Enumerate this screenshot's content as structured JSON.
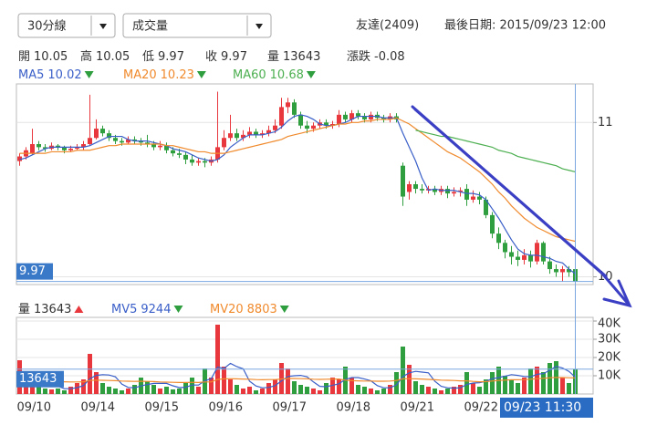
{
  "controls": {
    "period": "30分線",
    "indicator": "成交量"
  },
  "header": {
    "stock": "友達(2409)",
    "last_date": "最後日期: 2015/09/23 12:00"
  },
  "info_labels": [
    "開",
    "高",
    "低",
    "收",
    "量",
    "漲跌"
  ],
  "change": -0.08,
  "chart_data": [
    {
      "type": "candlestick",
      "up_color": "#e8383d",
      "down_color": "#2e9e3e",
      "open": [
        10.75,
        10.78,
        10.8,
        10.86,
        10.84,
        10.83,
        10.85,
        10.84,
        10.82,
        10.83,
        10.84,
        10.86,
        10.9,
        10.96,
        10.93,
        10.9,
        10.88,
        10.87,
        10.89,
        10.88,
        10.87,
        10.86,
        10.84,
        10.85,
        10.82,
        10.8,
        10.79,
        10.76,
        10.74,
        10.75,
        10.74,
        10.76,
        10.84,
        10.9,
        10.93,
        10.9,
        10.92,
        10.94,
        10.92,
        10.93,
        10.95,
        10.98,
        11.1,
        11.13,
        11.05,
        10.98,
        10.96,
        10.98,
        11.0,
        10.98,
        10.99,
        11.05,
        11.02,
        11.06,
        11.04,
        11.02,
        11.05,
        11.03,
        11.02,
        11.04,
        10.72,
        10.55,
        10.6,
        10.57,
        10.56,
        10.57,
        10.55,
        10.57,
        10.54,
        10.55,
        10.57,
        10.5,
        10.52,
        10.5,
        10.4,
        10.28,
        10.22,
        10.16,
        10.13,
        10.11,
        10.14,
        10.1,
        10.22,
        10.1,
        10.05,
        10.03,
        10.05,
        10.05
      ],
      "high": [
        10.8,
        10.84,
        10.96,
        10.88,
        10.86,
        10.87,
        10.86,
        10.85,
        10.85,
        10.86,
        10.88,
        11.18,
        11.02,
        10.98,
        10.95,
        10.92,
        10.9,
        10.91,
        10.91,
        10.9,
        10.92,
        10.88,
        10.88,
        10.87,
        10.84,
        10.83,
        10.81,
        10.79,
        10.77,
        10.77,
        10.78,
        11.2,
        10.95,
        11.05,
        10.96,
        10.95,
        10.97,
        10.96,
        10.95,
        10.98,
        11.02,
        11.16,
        11.16,
        11.15,
        11.07,
        11.01,
        11.0,
        11.02,
        11.02,
        11.01,
        11.08,
        11.07,
        11.08,
        11.08,
        11.06,
        11.07,
        11.07,
        11.05,
        11.06,
        11.06,
        10.74,
        10.62,
        10.62,
        10.6,
        10.59,
        10.59,
        10.59,
        10.59,
        10.58,
        10.58,
        10.6,
        10.56,
        10.55,
        10.52,
        10.42,
        10.32,
        10.24,
        10.2,
        10.17,
        10.18,
        10.17,
        10.24,
        10.23,
        10.13,
        10.08,
        10.07,
        10.07,
        10.05
      ],
      "low": [
        10.72,
        10.76,
        10.79,
        10.82,
        10.81,
        10.82,
        10.82,
        10.8,
        10.81,
        10.82,
        10.82,
        10.85,
        10.89,
        10.91,
        10.88,
        10.86,
        10.85,
        10.86,
        10.86,
        10.85,
        10.84,
        10.82,
        10.82,
        10.8,
        10.78,
        10.77,
        10.73,
        10.72,
        10.72,
        10.71,
        10.72,
        10.74,
        10.82,
        10.88,
        10.88,
        10.88,
        10.9,
        10.9,
        10.9,
        10.91,
        10.93,
        10.96,
        11.06,
        11.03,
        10.96,
        10.93,
        10.94,
        10.96,
        10.96,
        10.96,
        10.97,
        11.0,
        11.0,
        11.02,
        11.0,
        11.0,
        11.01,
        11.0,
        11.0,
        11.0,
        10.46,
        10.5,
        10.54,
        10.54,
        10.54,
        10.53,
        10.53,
        10.51,
        10.52,
        10.52,
        10.46,
        10.48,
        10.47,
        10.38,
        10.25,
        10.18,
        10.12,
        10.08,
        10.07,
        10.08,
        10.06,
        10.08,
        10.08,
        10.02,
        10.0,
        9.97,
        10.0,
        9.97
      ],
      "close": [
        10.78,
        10.82,
        10.86,
        10.84,
        10.83,
        10.85,
        10.84,
        10.82,
        10.83,
        10.84,
        10.86,
        10.9,
        10.96,
        10.93,
        10.9,
        10.88,
        10.87,
        10.89,
        10.88,
        10.87,
        10.86,
        10.84,
        10.85,
        10.82,
        10.8,
        10.79,
        10.76,
        10.74,
        10.75,
        10.74,
        10.76,
        10.84,
        10.9,
        10.93,
        10.9,
        10.92,
        10.94,
        10.92,
        10.93,
        10.95,
        10.98,
        11.1,
        11.13,
        11.05,
        10.98,
        10.96,
        10.98,
        11.0,
        10.98,
        10.99,
        11.05,
        11.02,
        11.06,
        11.04,
        11.02,
        11.05,
        11.03,
        11.02,
        11.04,
        11.02,
        10.52,
        10.6,
        10.57,
        10.56,
        10.57,
        10.55,
        10.57,
        10.54,
        10.55,
        10.56,
        10.5,
        10.52,
        10.5,
        10.4,
        10.28,
        10.22,
        10.16,
        10.13,
        10.11,
        10.14,
        10.1,
        10.22,
        10.1,
        10.05,
        10.03,
        10.05,
        10.03,
        9.97
      ],
      "series": [
        {
          "name": "MA5",
          "color": "#3a5fc8",
          "values": [
            10.76,
            10.77,
            10.79,
            10.81,
            10.83,
            10.84,
            10.84,
            10.84,
            10.84,
            10.84,
            10.84,
            10.85,
            10.87,
            10.89,
            10.91,
            10.91,
            10.91,
            10.89,
            10.88,
            10.88,
            10.88,
            10.87,
            10.86,
            10.85,
            10.83,
            10.82,
            10.81,
            10.79,
            10.77,
            10.76,
            10.75,
            10.76,
            10.79,
            10.84,
            10.87,
            10.9,
            10.92,
            10.92,
            10.92,
            10.93,
            10.94,
            10.97,
            11.01,
            11.04,
            11.05,
            11.04,
            11.02,
            10.99,
            10.98,
            10.98,
            10.99,
            11.0,
            11.02,
            11.04,
            11.04,
            11.04,
            11.04,
            11.03,
            11.03,
            11.03,
            10.93,
            10.84,
            10.75,
            10.64,
            10.56,
            10.57,
            10.56,
            10.56,
            10.56,
            10.55,
            10.54,
            10.54,
            10.53,
            10.5,
            10.44,
            10.38,
            10.31,
            10.24,
            10.18,
            10.15,
            10.14,
            10.14,
            10.13,
            10.12,
            10.1,
            10.09,
            10.05,
            10.02
          ]
        },
        {
          "name": "MA20",
          "color": "#f08a2c",
          "values": [
            10.8,
            10.8,
            10.8,
            10.8,
            10.8,
            10.81,
            10.81,
            10.81,
            10.81,
            10.82,
            10.82,
            10.82,
            10.83,
            10.84,
            10.85,
            10.85,
            10.86,
            10.86,
            10.86,
            10.86,
            10.86,
            10.86,
            10.86,
            10.85,
            10.85,
            10.84,
            10.83,
            10.82,
            10.81,
            10.81,
            10.8,
            10.8,
            10.8,
            10.81,
            10.82,
            10.83,
            10.84,
            10.85,
            10.86,
            10.87,
            10.88,
            10.89,
            10.91,
            10.92,
            10.93,
            10.94,
            10.95,
            10.96,
            10.97,
            10.98,
            10.99,
            10.99,
            11.0,
            11.0,
            11.01,
            11.01,
            11.02,
            11.02,
            11.02,
            11.03,
            11.01,
            10.99,
            10.96,
            10.93,
            10.9,
            10.87,
            10.84,
            10.81,
            10.79,
            10.77,
            10.74,
            10.71,
            10.68,
            10.64,
            10.6,
            10.55,
            10.51,
            10.46,
            10.42,
            10.38,
            10.35,
            10.32,
            10.3,
            10.28,
            10.26,
            10.25,
            10.24,
            10.23
          ]
        },
        {
          "name": "MA60",
          "color": "#4caf50",
          "values": [
            null,
            null,
            null,
            null,
            null,
            null,
            null,
            null,
            null,
            null,
            null,
            null,
            null,
            null,
            null,
            null,
            null,
            null,
            null,
            null,
            null,
            null,
            null,
            null,
            null,
            null,
            null,
            null,
            null,
            null,
            null,
            null,
            null,
            null,
            null,
            null,
            null,
            null,
            null,
            null,
            null,
            null,
            null,
            null,
            null,
            null,
            null,
            null,
            null,
            null,
            null,
            null,
            null,
            null,
            null,
            null,
            null,
            null,
            null,
            null,
            null,
            null,
            10.95,
            10.94,
            10.93,
            10.92,
            10.91,
            10.91,
            10.9,
            10.89,
            10.88,
            10.87,
            10.86,
            10.85,
            10.84,
            10.82,
            10.81,
            10.8,
            10.78,
            10.77,
            10.76,
            10.75,
            10.74,
            10.73,
            10.72,
            10.7,
            10.69,
            10.68
          ]
        }
      ],
      "ylim": [
        9.95,
        11.25
      ],
      "yticks": [
        10,
        11
      ],
      "grid": true
    },
    {
      "type": "bar",
      "volume_label": "量",
      "cursor_label": "09/23 11:30",
      "categories": [
        "09/10",
        null,
        null,
        null,
        null,
        null,
        null,
        null,
        null,
        null,
        "09/14",
        null,
        null,
        null,
        null,
        null,
        null,
        null,
        null,
        null,
        "09/15",
        null,
        null,
        null,
        null,
        null,
        null,
        null,
        null,
        null,
        "09/16",
        null,
        null,
        null,
        null,
        null,
        null,
        null,
        null,
        null,
        "09/17",
        null,
        null,
        null,
        null,
        null,
        null,
        null,
        null,
        null,
        "09/18",
        null,
        null,
        null,
        null,
        null,
        null,
        null,
        null,
        null,
        "09/21",
        null,
        null,
        null,
        null,
        null,
        null,
        null,
        null,
        null,
        "09/22",
        null,
        null,
        null,
        null,
        null,
        null,
        null,
        null,
        null,
        null,
        null,
        null,
        null,
        null,
        null,
        null,
        null
      ],
      "values": [
        18500,
        6000,
        9000,
        4000,
        3000,
        2500,
        3000,
        2000,
        4000,
        6000,
        8000,
        22000,
        12000,
        6000,
        4000,
        3000,
        2000,
        3000,
        5000,
        9000,
        7000,
        5000,
        3000,
        4000,
        2500,
        3000,
        6000,
        9000,
        4000,
        14000,
        9000,
        38000,
        15000,
        8000,
        5000,
        3000,
        4000,
        2000,
        3000,
        6000,
        8000,
        17000,
        14000,
        7000,
        5000,
        4000,
        3000,
        2000,
        6000,
        9000,
        8000,
        15000,
        9000,
        5000,
        4000,
        3000,
        2000,
        3000,
        5000,
        12000,
        26000,
        16000,
        7000,
        5000,
        4000,
        3000,
        2000,
        3000,
        4000,
        5000,
        12000,
        6000,
        4000,
        8000,
        12000,
        15000,
        10000,
        8000,
        6000,
        9000,
        14000,
        15000,
        12000,
        17000,
        18000,
        9000,
        6000,
        13643
      ],
      "series": [
        {
          "name": "MV5",
          "color": "#3a5fc8",
          "values": [
            8000,
            9000,
            10000,
            9500,
            8100,
            4900,
            4300,
            2900,
            2900,
            3500,
            4600,
            8400,
            10200,
            10600,
            10400,
            9400,
            5400,
            3600,
            3400,
            4400,
            5200,
            5800,
            5800,
            5800,
            4500,
            3500,
            3700,
            4900,
            4900,
            7200,
            8400,
            14800,
            14000,
            16800,
            15000,
            13800,
            7000,
            4400,
            3400,
            3600,
            4600,
            7200,
            9600,
            10000,
            10200,
            9400,
            6600,
            4200,
            4000,
            4800,
            5600,
            8000,
            9000,
            9000,
            8200,
            7200,
            4600,
            3400,
            3400,
            5000,
            9600,
            11600,
            12400,
            12000,
            11600,
            7000,
            4200,
            3400,
            3200,
            3400,
            5200,
            6000,
            6200,
            7000,
            8400,
            9000,
            9800,
            10600,
            10200,
            9600,
            9400,
            10800,
            11200,
            13000,
            15200,
            14200,
            12400,
            9244
          ]
        },
        {
          "name": "MV20",
          "color": "#f08a2c",
          "values": [
            7000,
            7100,
            7200,
            7100,
            7000,
            6900,
            6800,
            6700,
            6600,
            6600,
            6700,
            7400,
            7600,
            7500,
            7400,
            7300,
            7100,
            7000,
            6900,
            7000,
            6900,
            6800,
            6600,
            6500,
            6400,
            6300,
            6300,
            6400,
            6300,
            6600,
            6600,
            8000,
            8300,
            8400,
            8300,
            8200,
            8100,
            7900,
            7800,
            7900,
            7900,
            8200,
            8500,
            8500,
            8400,
            8300,
            8100,
            8000,
            8100,
            8200,
            8200,
            7600,
            7300,
            7200,
            7100,
            7100,
            7000,
            7000,
            7100,
            7400,
            8300,
            8400,
            8300,
            8200,
            8000,
            7800,
            7600,
            7500,
            7400,
            7200,
            7200,
            6900,
            6700,
            6800,
            7100,
            7400,
            7600,
            7800,
            7800,
            7900,
            8100,
            8400,
            8600,
            8900,
            9100,
            9000,
            8900,
            8803
          ]
        }
      ],
      "ylim": [
        0,
        42000
      ],
      "yticks": [
        {
          "value": 10000,
          "label": "10K"
        },
        {
          "value": 20000,
          "label": "20K"
        },
        {
          "value": 30000,
          "label": "30K"
        },
        {
          "value": 40000,
          "label": "40K"
        }
      ]
    }
  ]
}
